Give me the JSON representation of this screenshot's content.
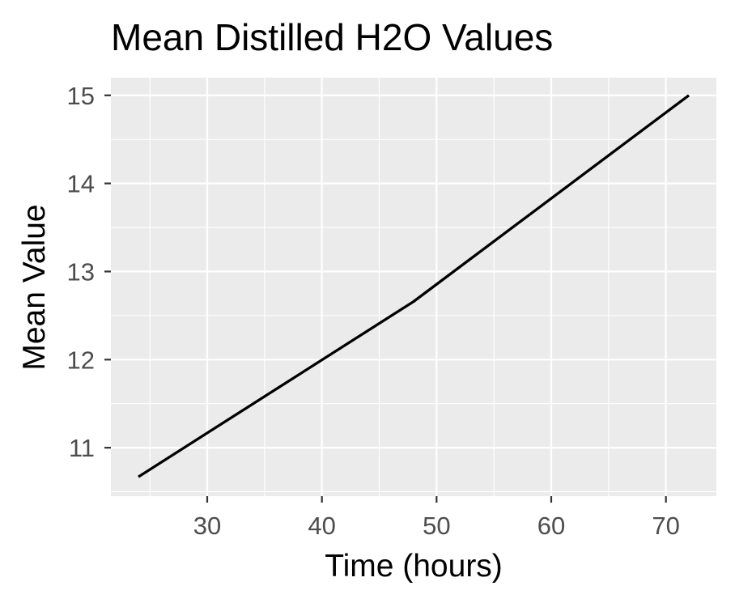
{
  "chart_data": {
    "type": "line",
    "title": "Mean Distilled H2O Values",
    "xlabel": "Time (hours)",
    "ylabel": "Mean Value",
    "xlim": [
      21.6,
      74.4
    ],
    "ylim": [
      10.45,
      15.2
    ],
    "x_ticks": [
      30,
      40,
      50,
      60,
      70
    ],
    "y_ticks": [
      11,
      12,
      13,
      14,
      15
    ],
    "x_minor_ticks": [
      25,
      35,
      45,
      55,
      65
    ],
    "y_minor_ticks": [
      10.5,
      11.5,
      12.5,
      13.5,
      14.5
    ],
    "grid": true,
    "series": [
      {
        "x": [
          24,
          48,
          72
        ],
        "y": [
          10.67,
          12.66,
          15.0
        ],
        "color": "#000000"
      }
    ]
  },
  "style": {
    "panel_background": "#ebebeb",
    "grid_color": "#ffffff",
    "tick_color": "#333333"
  }
}
